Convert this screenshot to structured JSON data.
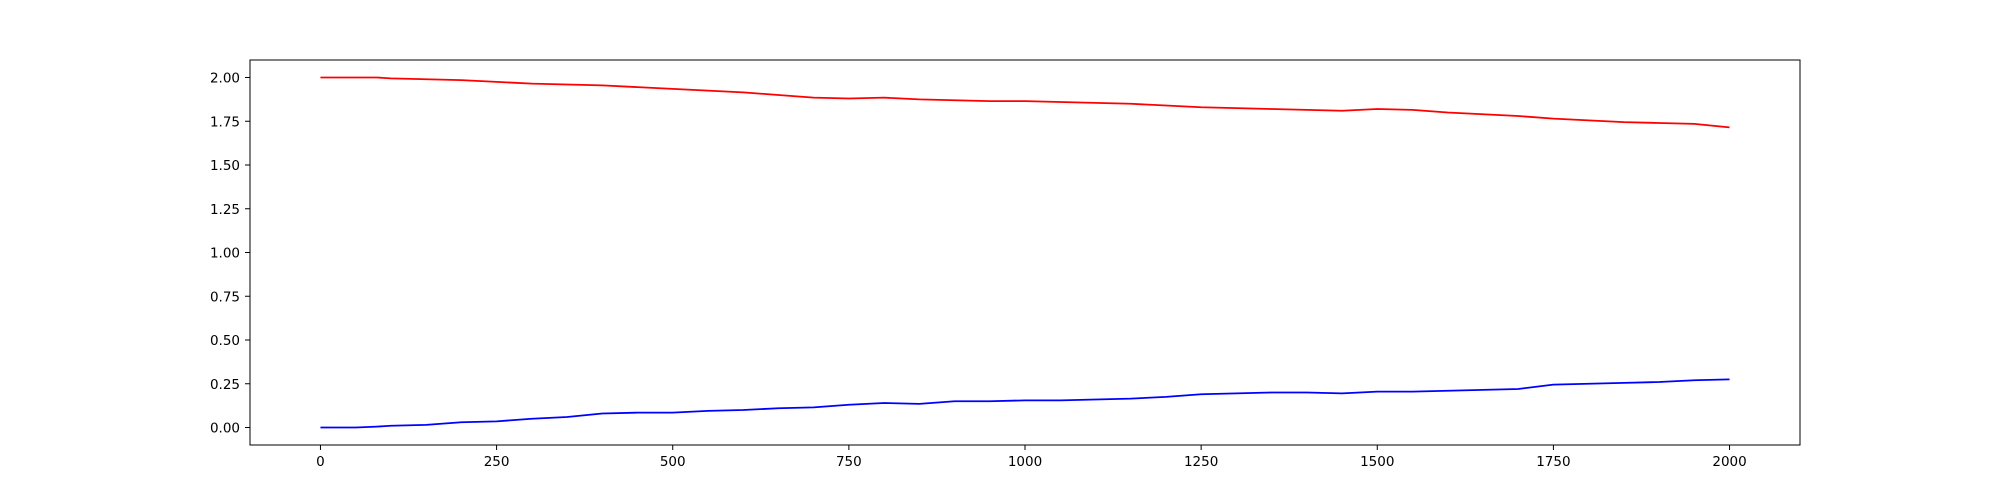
{
  "chart_data": {
    "type": "line",
    "title": "",
    "xlabel": "",
    "ylabel": "",
    "xlim": [
      -100,
      2100
    ],
    "ylim": [
      -0.1,
      2.1
    ],
    "grid": false,
    "legend": "none",
    "x_ticks": [
      0,
      250,
      500,
      750,
      1000,
      1250,
      1500,
      1750,
      2000
    ],
    "y_ticks": [
      0.0,
      0.25,
      0.5,
      0.75,
      1.0,
      1.25,
      1.5,
      1.75,
      2.0
    ],
    "x_tick_labels": [
      "0",
      "250",
      "500",
      "750",
      "1000",
      "1250",
      "1500",
      "1750",
      "2000"
    ],
    "y_tick_labels": [
      "0.00",
      "0.25",
      "0.50",
      "0.75",
      "1.00",
      "1.25",
      "1.50",
      "1.75",
      "2.00"
    ],
    "series": [
      {
        "color": "#ff0000",
        "x": [
          0,
          50,
          80,
          100,
          150,
          200,
          250,
          300,
          350,
          400,
          450,
          500,
          550,
          600,
          650,
          700,
          750,
          800,
          850,
          900,
          950,
          1000,
          1050,
          1100,
          1150,
          1200,
          1250,
          1300,
          1350,
          1400,
          1450,
          1500,
          1550,
          1600,
          1650,
          1700,
          1750,
          1800,
          1850,
          1900,
          1950,
          2000
        ],
        "y": [
          2.0,
          2.0,
          2.0,
          1.995,
          1.99,
          1.985,
          1.975,
          1.965,
          1.96,
          1.955,
          1.945,
          1.935,
          1.925,
          1.915,
          1.9,
          1.885,
          1.88,
          1.885,
          1.875,
          1.87,
          1.865,
          1.865,
          1.86,
          1.855,
          1.85,
          1.84,
          1.83,
          1.825,
          1.82,
          1.815,
          1.81,
          1.82,
          1.815,
          1.8,
          1.79,
          1.78,
          1.765,
          1.755,
          1.745,
          1.74,
          1.735,
          1.715
        ]
      },
      {
        "color": "#0000ff",
        "x": [
          0,
          50,
          80,
          100,
          150,
          200,
          250,
          300,
          350,
          400,
          450,
          500,
          550,
          600,
          650,
          700,
          750,
          800,
          850,
          900,
          950,
          1000,
          1050,
          1100,
          1150,
          1200,
          1250,
          1300,
          1350,
          1400,
          1450,
          1500,
          1550,
          1600,
          1650,
          1700,
          1750,
          1800,
          1850,
          1900,
          1950,
          2000
        ],
        "y": [
          0.0,
          0.0,
          0.005,
          0.01,
          0.015,
          0.03,
          0.035,
          0.05,
          0.06,
          0.08,
          0.085,
          0.085,
          0.095,
          0.1,
          0.11,
          0.115,
          0.13,
          0.14,
          0.135,
          0.15,
          0.15,
          0.155,
          0.155,
          0.16,
          0.165,
          0.175,
          0.19,
          0.195,
          0.2,
          0.2,
          0.195,
          0.205,
          0.205,
          0.21,
          0.215,
          0.22,
          0.245,
          0.25,
          0.255,
          0.26,
          0.27,
          0.275
        ]
      }
    ]
  }
}
